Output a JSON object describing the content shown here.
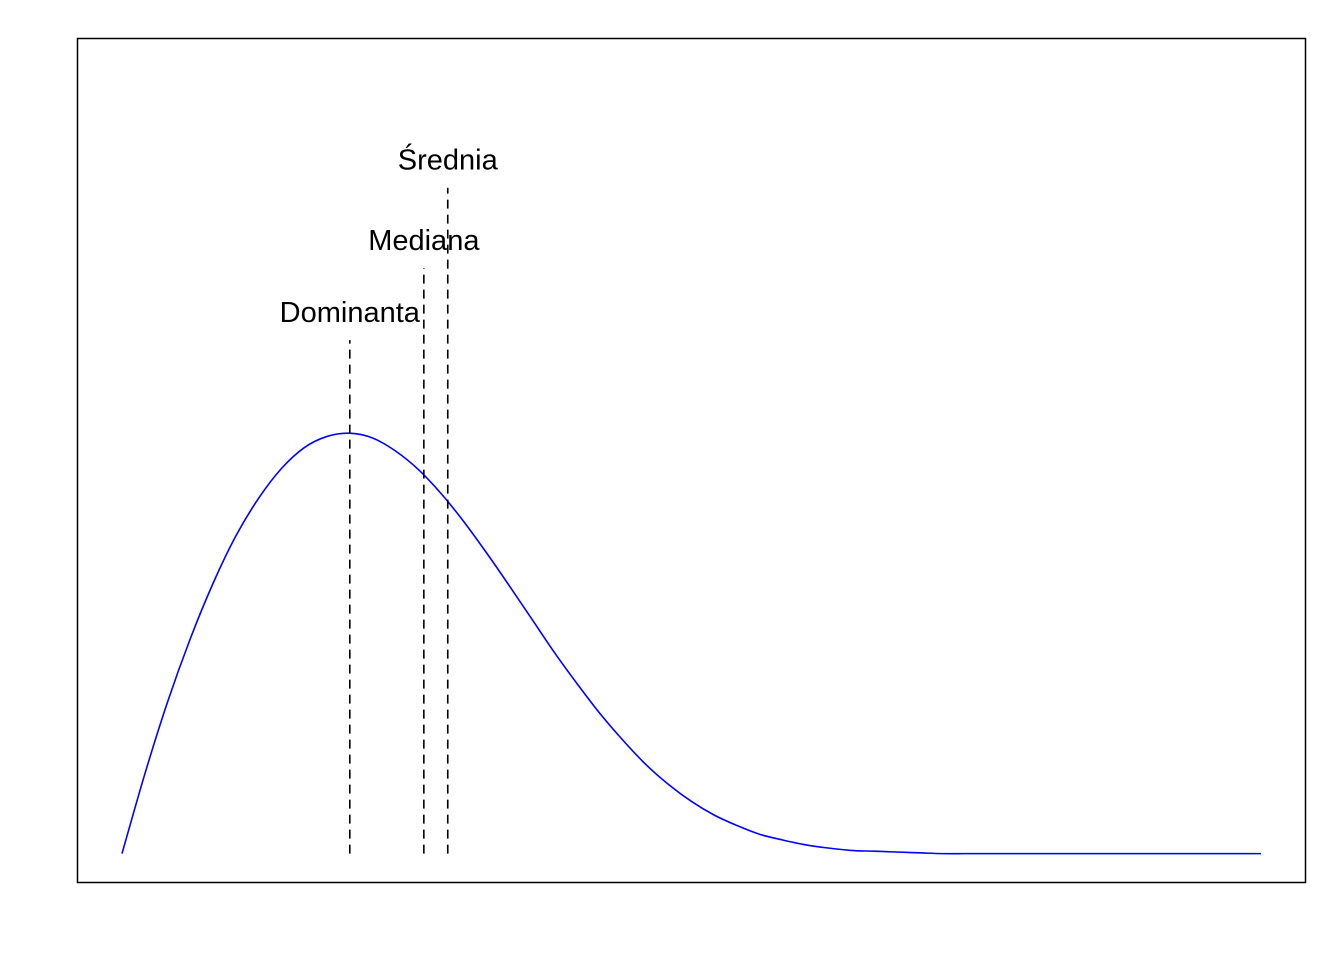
{
  "chart_data": {
    "type": "line",
    "title": "",
    "xlabel": "",
    "ylabel": "",
    "axes_shown": false,
    "grid": false,
    "curve_color": "#0000ff",
    "reference_line_color": "#000000",
    "xlim": [
      0,
      1
    ],
    "ylim": [
      -0.036,
      1.016
    ],
    "series": [
      {
        "x": [
          0.0,
          0.02,
          0.04,
          0.06,
          0.08,
          0.1,
          0.12,
          0.14,
          0.16,
          0.18,
          0.2,
          0.22,
          0.24,
          0.26,
          0.28,
          0.3,
          0.32,
          0.34,
          0.36,
          0.38,
          0.4,
          0.42,
          0.44,
          0.46,
          0.48,
          0.5,
          0.52,
          0.54,
          0.56,
          0.58,
          0.6,
          0.62,
          0.64,
          0.66,
          0.68,
          0.7,
          0.72,
          0.74,
          0.76,
          0.78,
          0.8,
          0.82,
          0.84,
          0.86,
          0.88,
          0.9,
          0.92,
          0.94,
          0.96,
          0.98,
          1.0
        ],
        "y": [
          0.0,
          0.099,
          0.189,
          0.268,
          0.337,
          0.396,
          0.443,
          0.48,
          0.506,
          0.52,
          0.524,
          0.518,
          0.502,
          0.479,
          0.449,
          0.414,
          0.375,
          0.334,
          0.292,
          0.25,
          0.211,
          0.174,
          0.141,
          0.111,
          0.086,
          0.065,
          0.048,
          0.035,
          0.024,
          0.017,
          0.011,
          0.007,
          0.004,
          0.003,
          0.002,
          0.001,
          0.0,
          0.0,
          0.0,
          0.0,
          0.0,
          0.0,
          0.0,
          0.0,
          0.0,
          0.0,
          0.0,
          0.0,
          0.0,
          0.0,
          0.0
        ]
      }
    ],
    "reference_lines": [
      {
        "label": "Dominanta",
        "x": 0.2,
        "y_top": 0.64
      },
      {
        "label": "Mediana",
        "x": 0.265,
        "y_top": 0.73
      },
      {
        "label": "Średnia",
        "x": 0.286,
        "y_top": 0.83
      }
    ]
  }
}
